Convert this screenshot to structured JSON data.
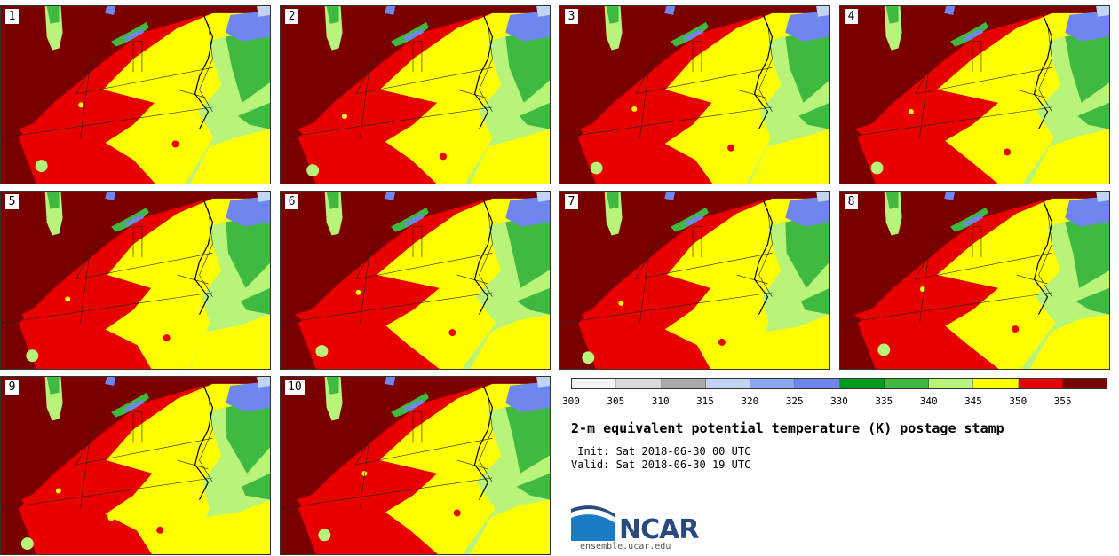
{
  "panels": [
    "1",
    "2",
    "3",
    "4",
    "5",
    "6",
    "7",
    "8",
    "9",
    "10"
  ],
  "colorbar": {
    "levels": [
      "300",
      "305",
      "310",
      "315",
      "320",
      "325",
      "330",
      "335",
      "340",
      "345",
      "350",
      "355"
    ],
    "colors": [
      "#f4f4f4",
      "#d9d9d9",
      "#a9a9a9",
      "#c2d4f4",
      "#8da6f2",
      "#6f86ee",
      "#009a1e",
      "#3fb93f",
      "#b8f47a",
      "#ffff00",
      "#e80000",
      "#7a0000"
    ]
  },
  "title": "2-m equivalent potential temperature (K) postage stamp",
  "init": " Init: Sat 2018-06-30 00 UTC",
  "valid": "Valid: Sat 2018-06-30 19 UTC",
  "logo": {
    "name": "NCAR"
  },
  "site": "ensemble.ucar.edu",
  "map_colors": {
    "deep_red": "#7a0000",
    "red": "#e80000",
    "yellow": "#ffff00",
    "light_green": "#b8f47a",
    "green": "#3fb93f",
    "dark_green": "#009a1e",
    "blue": "#6f86ee",
    "light_blue": "#c2d4f4"
  }
}
